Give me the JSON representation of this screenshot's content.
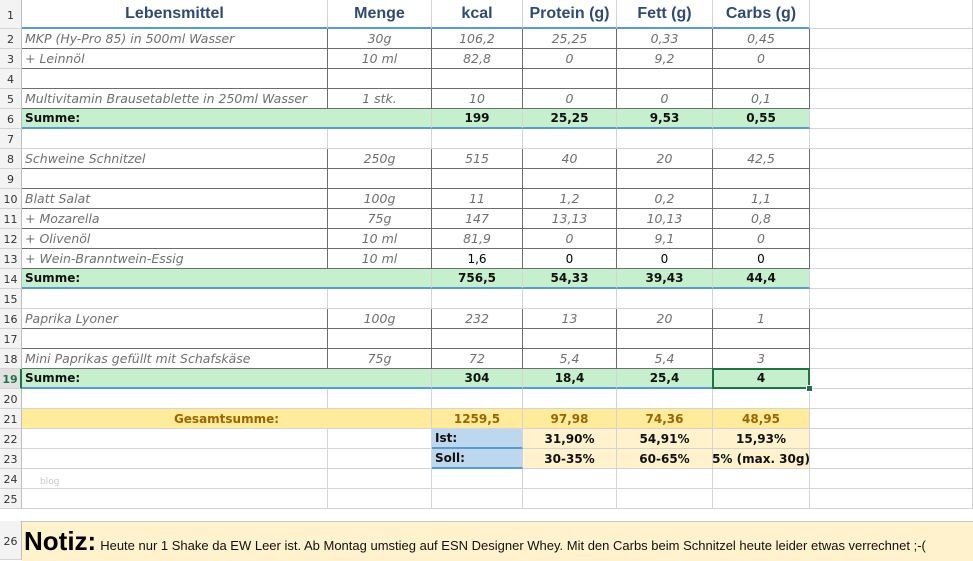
{
  "headers": [
    "Lebensmittel",
    "Menge",
    "kcal",
    "Protein (g)",
    "Fett (g)",
    "Carbs (g)"
  ],
  "rows": [
    {
      "n": "2",
      "type": "item",
      "cells": [
        "MKP (Hy-Pro 85) in 500ml Wasser",
        "30g",
        "106,2",
        "25,25",
        "0,33",
        "0,45"
      ]
    },
    {
      "n": "3",
      "type": "item",
      "cells": [
        " + Leinnöl",
        "10 ml",
        "82,8",
        "0",
        "9,2",
        "0"
      ]
    },
    {
      "n": "4",
      "type": "blank",
      "cells": [
        "",
        "",
        "",
        "",
        "",
        ""
      ]
    },
    {
      "n": "5",
      "type": "item",
      "cells": [
        "Multivitamin Brausetablette in 250ml Wasser",
        "1 stk.",
        "10",
        "0",
        "0",
        "0,1"
      ]
    },
    {
      "n": "6",
      "type": "sum",
      "cells": [
        "Summe:",
        "",
        "199",
        "25,25",
        "9,53",
        "0,55"
      ]
    },
    {
      "n": "7",
      "type": "empty",
      "cells": [
        "",
        "",
        "",
        "",
        "",
        ""
      ]
    },
    {
      "n": "8",
      "type": "item",
      "cells": [
        "Schweine Schnitzel",
        "250g",
        "515",
        "40",
        "20",
        "42,5"
      ]
    },
    {
      "n": "9",
      "type": "blank",
      "cells": [
        "",
        "",
        "",
        "",
        "",
        ""
      ]
    },
    {
      "n": "10",
      "type": "item",
      "cells": [
        "Blatt Salat",
        "100g",
        "11",
        "1,2",
        "0,2",
        "1,1"
      ]
    },
    {
      "n": "11",
      "type": "item",
      "cells": [
        " + Mozarella",
        "75g",
        "147",
        "13,13",
        "10,13",
        "0,8"
      ]
    },
    {
      "n": "12",
      "type": "item",
      "cells": [
        " + Olivenöl",
        "10 ml",
        "81,9",
        "0",
        "9,1",
        "0"
      ]
    },
    {
      "n": "13",
      "type": "mixed",
      "cells": [
        " + Wein-Branntwein-Essig",
        "10 ml",
        "1,6",
        "0",
        "0",
        "0"
      ]
    },
    {
      "n": "14",
      "type": "sum",
      "cells": [
        "Summe:",
        "",
        "756,5",
        "54,33",
        "39,43",
        "44,4"
      ]
    },
    {
      "n": "15",
      "type": "empty",
      "cells": [
        "",
        "",
        "",
        "",
        "",
        ""
      ]
    },
    {
      "n": "16",
      "type": "item",
      "cells": [
        "Paprika Lyoner",
        "100g",
        "232",
        "13",
        "20",
        "1"
      ]
    },
    {
      "n": "17",
      "type": "blank",
      "cells": [
        "",
        "",
        "",
        "",
        "",
        ""
      ]
    },
    {
      "n": "18",
      "type": "item",
      "cells": [
        "Mini Paprikas gefüllt mit Schafskäse",
        "75g",
        "72",
        "5,4",
        "5,4",
        "3"
      ]
    },
    {
      "n": "19",
      "type": "sum",
      "cells": [
        "Summe:",
        "",
        "304",
        "18,4",
        "25,4",
        "4"
      ]
    },
    {
      "n": "20",
      "type": "empty",
      "cells": [
        "",
        "",
        "",
        "",
        "",
        ""
      ]
    },
    {
      "n": "21",
      "type": "total",
      "cells": [
        "Gesamtsumme:",
        "",
        "1259,5",
        "97,98",
        "74,36",
        "48,95"
      ]
    },
    {
      "n": "22",
      "type": "ratio",
      "cells": [
        "",
        "",
        "Ist:",
        "31,90%",
        "54,91%",
        "15,93%"
      ]
    },
    {
      "n": "23",
      "type": "ratio",
      "cells": [
        "",
        "",
        "Soll:",
        "30-35%",
        "60-65%",
        "5% (max. 30g)"
      ]
    },
    {
      "n": "24",
      "type": "empty",
      "cells": [
        "",
        "",
        "",
        "",
        "",
        ""
      ]
    },
    {
      "n": "25",
      "type": "empty",
      "cells": [
        "",
        "",
        "",
        "",
        "",
        ""
      ]
    }
  ],
  "header_row_num": "1",
  "note_row_num": "26",
  "note": {
    "title": "Notiz:",
    "text": "Heute nur 1 Shake da EW Leer ist. Ab Montag umstieg auf ESN Designer Whey. Mit den Carbs beim Schnitzel heute leider etwas verrechnet ;-("
  },
  "watermark": "blog",
  "active_row": "19"
}
